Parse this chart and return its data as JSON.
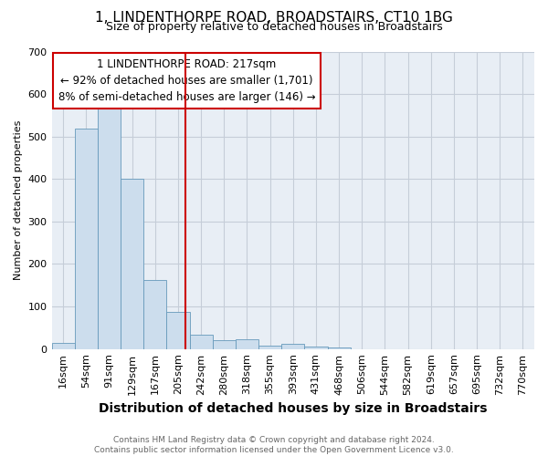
{
  "title": "1, LINDENTHORPE ROAD, BROADSTAIRS, CT10 1BG",
  "subtitle": "Size of property relative to detached houses in Broadstairs",
  "xlabel": "Distribution of detached houses by size in Broadstairs",
  "ylabel": "Number of detached properties",
  "bar_labels": [
    "16sqm",
    "54sqm",
    "91sqm",
    "129sqm",
    "167sqm",
    "205sqm",
    "242sqm",
    "280sqm",
    "318sqm",
    "355sqm",
    "393sqm",
    "431sqm",
    "468sqm",
    "506sqm",
    "544sqm",
    "582sqm",
    "619sqm",
    "657sqm",
    "695sqm",
    "732sqm",
    "770sqm"
  ],
  "bar_values": [
    14,
    519,
    580,
    400,
    163,
    88,
    33,
    21,
    22,
    8,
    13,
    5,
    4,
    0,
    0,
    0,
    0,
    0,
    0,
    0,
    0
  ],
  "bar_color": "#ccdded",
  "bar_edge_color": "#6699bb",
  "vline_color": "#cc0000",
  "annotation_line1": "1 LINDENTHORPE ROAD: 217sqm",
  "annotation_line2": "← 92% of detached houses are smaller (1,701)",
  "annotation_line3": "8% of semi-detached houses are larger (146) →",
  "annotation_box_edgecolor": "#cc0000",
  "ylim": [
    0,
    700
  ],
  "yticks": [
    0,
    100,
    200,
    300,
    400,
    500,
    600,
    700
  ],
  "plot_bg_color": "#e8eef5",
  "background_color": "#ffffff",
  "grid_color": "#c5cdd8",
  "title_fontsize": 11,
  "subtitle_fontsize": 9,
  "xlabel_fontsize": 10,
  "ylabel_fontsize": 8,
  "tick_fontsize": 8,
  "annotation_fontsize": 8.5,
  "footer_fontsize": 6.5,
  "footer_line1": "Contains HM Land Registry data © Crown copyright and database right 2024.",
  "footer_line2": "Contains public sector information licensed under the Open Government Licence v3.0.",
  "property_sqm": 217,
  "bin_starts": [
    16,
    54,
    91,
    129,
    167,
    205,
    242,
    280,
    318,
    355,
    393,
    431,
    468,
    506,
    544,
    582,
    619,
    657,
    695,
    732,
    770
  ]
}
